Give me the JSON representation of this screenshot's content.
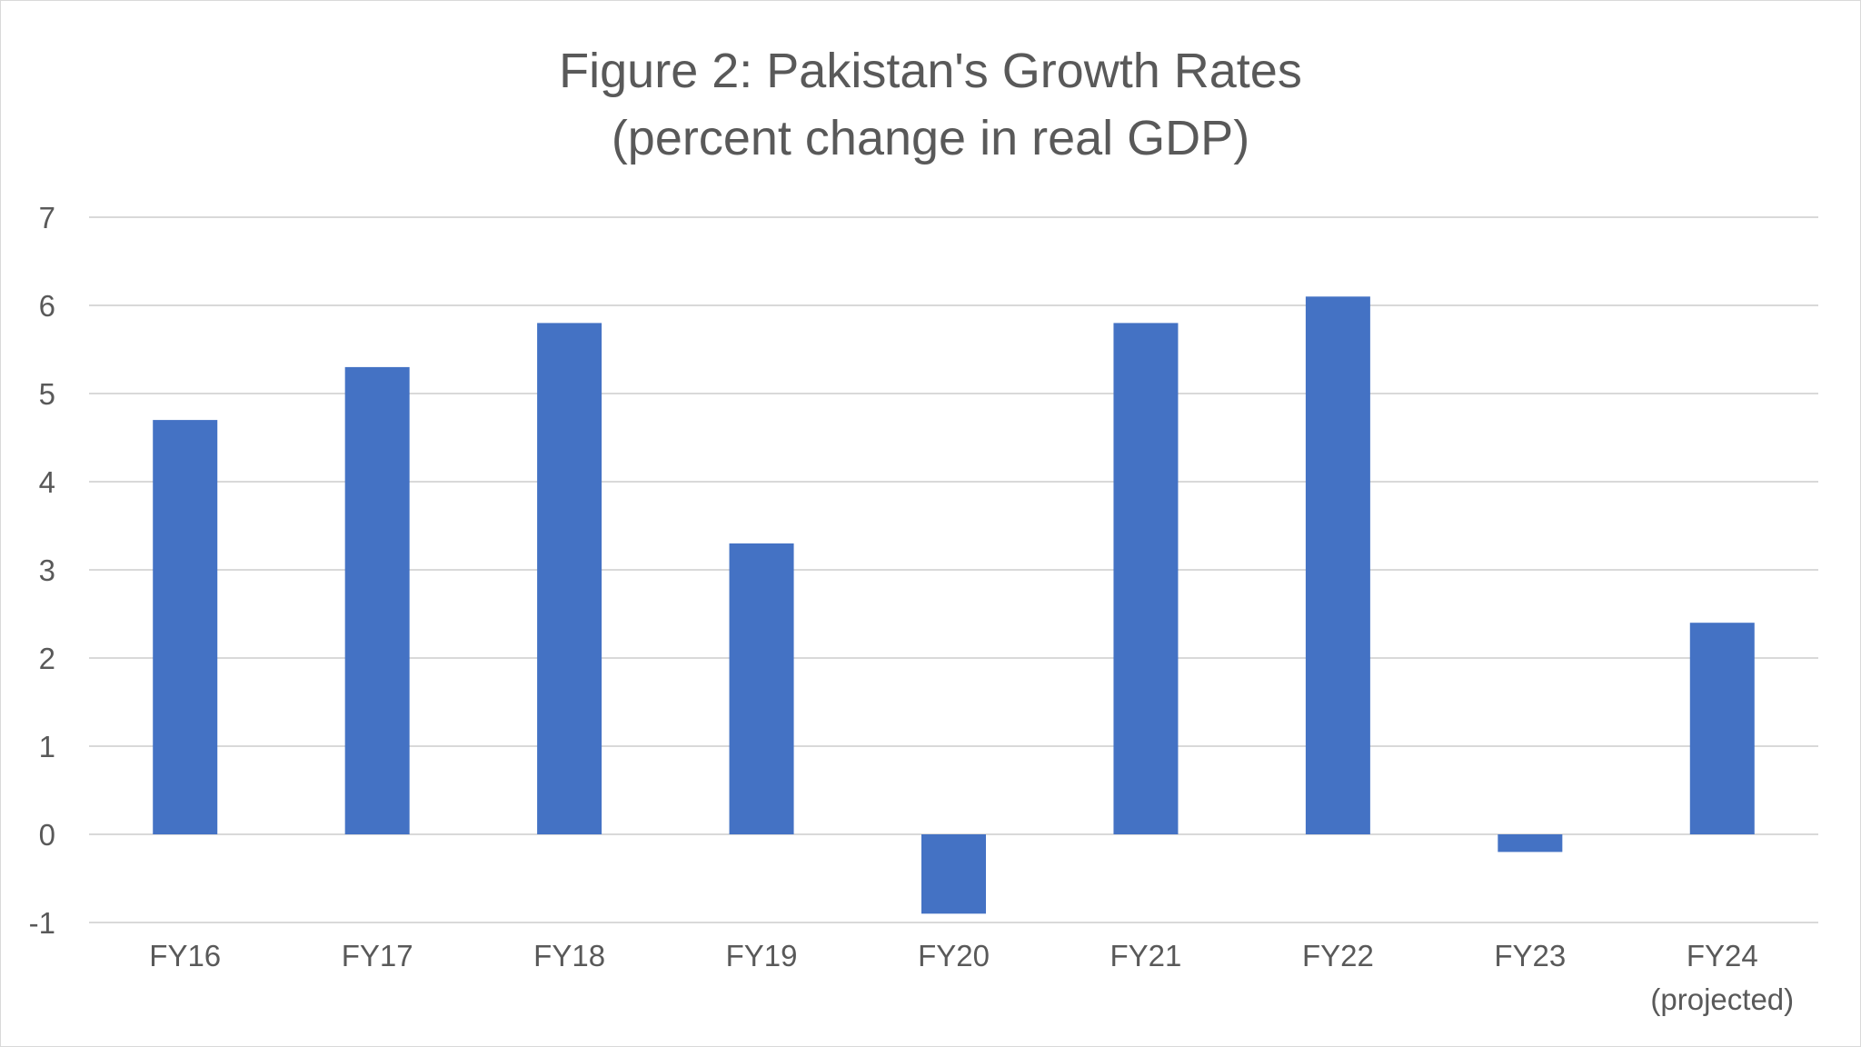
{
  "chart_data": {
    "type": "bar",
    "title": "Figure 2: Pakistan's Growth Rates",
    "subtitle": "(percent change in real GDP)",
    "categories": [
      "FY16",
      "FY17",
      "FY18",
      "FY19",
      "FY20",
      "FY21",
      "FY22",
      "FY23",
      "FY24"
    ],
    "category_sublabels": [
      "",
      "",
      "",
      "",
      "",
      "",
      "",
      "",
      "(projected)"
    ],
    "values": [
      4.7,
      5.3,
      5.8,
      3.3,
      -0.9,
      5.8,
      6.1,
      -0.2,
      2.4
    ],
    "ylim": [
      -1,
      7
    ],
    "yticks": [
      "-1",
      "0",
      "1",
      "2",
      "3",
      "4",
      "5",
      "6",
      "7"
    ],
    "grid": true,
    "legend": "none",
    "bar_color": "#4472c4"
  }
}
